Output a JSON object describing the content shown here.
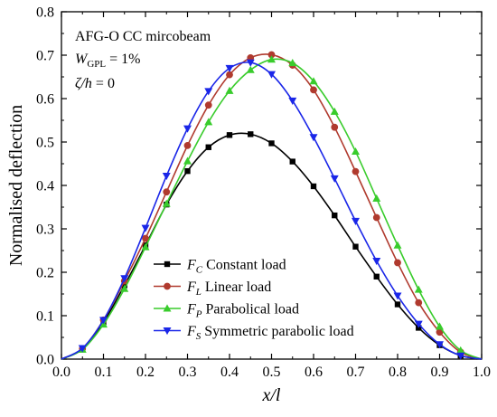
{
  "chart_data": {
    "type": "line",
    "title": "",
    "xlabel": "x/l",
    "ylabel": "Normalised deflection",
    "xlim": [
      0.0,
      1.0
    ],
    "ylim": [
      0.0,
      0.8
    ],
    "x_ticks": [
      0.0,
      0.1,
      0.2,
      0.3,
      0.4,
      0.5,
      0.6,
      0.7,
      0.8,
      0.9,
      1.0
    ],
    "y_ticks": [
      0.0,
      0.1,
      0.2,
      0.3,
      0.4,
      0.5,
      0.6,
      0.7,
      0.8
    ],
    "x_tick_labels": [
      "0.0",
      "0.1",
      "0.2",
      "0.3",
      "0.4",
      "0.5",
      "0.6",
      "0.7",
      "0.8",
      "0.9",
      "1.0"
    ],
    "y_tick_labels": [
      "0.0",
      "0.1",
      "0.2",
      "0.3",
      "0.4",
      "0.5",
      "0.6",
      "0.7",
      "0.8"
    ],
    "grid": false,
    "legend_position": "lower-left",
    "annotations": [
      {
        "text": "AFG-O CC mircobeam"
      },
      {
        "main": "W",
        "sub": "GPL",
        "rest": " = 1%"
      },
      {
        "main": "ζ/h",
        "rest": " = 0"
      }
    ],
    "series": [
      {
        "symbol": "F",
        "subscript": "C",
        "description": "Constant load",
        "marker": "square",
        "color": "#000000",
        "x": [
          0.0,
          0.05,
          0.1,
          0.15,
          0.2,
          0.25,
          0.3,
          0.35,
          0.4,
          0.45,
          0.5,
          0.55,
          0.6,
          0.65,
          0.7,
          0.75,
          0.8,
          0.85,
          0.9,
          0.95,
          1.0
        ],
        "y": [
          0.0,
          0.024,
          0.085,
          0.17,
          0.262,
          0.356,
          0.433,
          0.488,
          0.516,
          0.518,
          0.497,
          0.455,
          0.398,
          0.331,
          0.259,
          0.19,
          0.126,
          0.072,
          0.032,
          0.008,
          0.0
        ]
      },
      {
        "symbol": "F",
        "subscript": "L",
        "description": "Linear load",
        "marker": "circle",
        "color": "#b03a2e",
        "x": [
          0.0,
          0.05,
          0.1,
          0.15,
          0.2,
          0.25,
          0.3,
          0.35,
          0.4,
          0.45,
          0.5,
          0.55,
          0.6,
          0.65,
          0.7,
          0.75,
          0.8,
          0.85,
          0.9,
          0.95,
          1.0
        ],
        "y": [
          0.0,
          0.024,
          0.09,
          0.18,
          0.278,
          0.385,
          0.492,
          0.585,
          0.655,
          0.694,
          0.701,
          0.677,
          0.62,
          0.534,
          0.432,
          0.326,
          0.222,
          0.13,
          0.062,
          0.016,
          0.0
        ]
      },
      {
        "symbol": "F",
        "subscript": "P",
        "description": "Parabolical load",
        "marker": "triangle-up",
        "color": "#39cc2c",
        "x": [
          0.0,
          0.05,
          0.1,
          0.15,
          0.2,
          0.25,
          0.3,
          0.35,
          0.4,
          0.45,
          0.5,
          0.55,
          0.6,
          0.65,
          0.7,
          0.75,
          0.8,
          0.85,
          0.9,
          0.95,
          1.0
        ],
        "y": [
          0.0,
          0.022,
          0.08,
          0.162,
          0.258,
          0.358,
          0.456,
          0.546,
          0.618,
          0.666,
          0.69,
          0.682,
          0.64,
          0.57,
          0.478,
          0.37,
          0.262,
          0.16,
          0.075,
          0.02,
          0.0
        ]
      },
      {
        "symbol": "F",
        "subscript": "S",
        "description": "Symmetric parabolic load",
        "marker": "triangle-down",
        "color": "#1a26e8",
        "x": [
          0.0,
          0.05,
          0.1,
          0.15,
          0.2,
          0.25,
          0.3,
          0.35,
          0.4,
          0.45,
          0.5,
          0.55,
          0.6,
          0.65,
          0.7,
          0.75,
          0.8,
          0.85,
          0.9,
          0.95,
          1.0
        ],
        "y": [
          0.0,
          0.025,
          0.09,
          0.186,
          0.302,
          0.422,
          0.531,
          0.617,
          0.67,
          0.683,
          0.656,
          0.595,
          0.511,
          0.416,
          0.318,
          0.226,
          0.146,
          0.081,
          0.034,
          0.008,
          0.0
        ]
      }
    ]
  }
}
